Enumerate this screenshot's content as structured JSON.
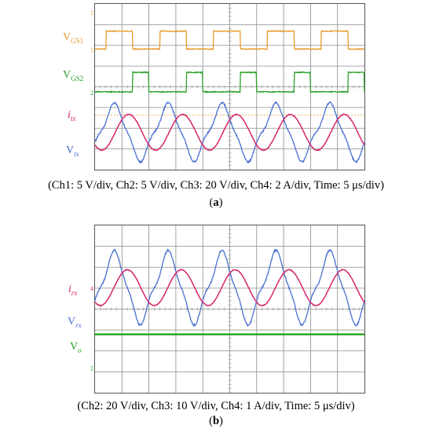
{
  "colors": {
    "vgs1": "#e89a2a",
    "vgs2": "#2ca02c",
    "current": "#d6246b",
    "voltage": "#4a6fd1",
    "grid": "#8c8c8c",
    "output": "#1fa31f"
  },
  "panel_a": {
    "labels": {
      "vgs1_main": "V",
      "vgs1_sub": "GS1",
      "vgs2_main": "V",
      "vgs2_sub": "GS2",
      "itx_main": "i",
      "itx_sub": "tx",
      "vtx_main": "V",
      "vtx_sub": "tx"
    },
    "caption": "(Ch1: 5 V/div, Ch2: 5 V/div, Ch3: 20 V/div, Ch4: 2 A/div, Time: 5 μs/div)",
    "sub_open": "(",
    "sub_letter": "a",
    "sub_close": ")"
  },
  "panel_b": {
    "labels": {
      "irx_main": "i",
      "irx_sub": "rx",
      "vrx_main": "V",
      "vrx_sub": "rx",
      "vo_main": "V",
      "vo_sub": "o"
    },
    "caption": "(Ch2: 20 V/div, Ch3: 10 V/div, Ch4: 1 A/div, Time: 5 μs/div)",
    "sub_open": "(",
    "sub_letter": "b",
    "sub_close": ")"
  },
  "chart_data": [
    {
      "type": "line",
      "x_unit": "div",
      "xlim": [
        0,
        10
      ],
      "grid": true,
      "grid_divisions": {
        "x": 10,
        "y": 8
      },
      "switching_period_div": 2.0,
      "series": [
        {
          "name": "VGS1",
          "shape": "square",
          "period": 2.0,
          "high_phase": [
            0.4,
            1.4
          ]
        },
        {
          "name": "VGS2",
          "shape": "square",
          "period": 2.0,
          "high_phase": [
            1.4,
            2.4
          ]
        },
        {
          "name": "itx",
          "shape": "sine",
          "period": 2.0,
          "amplitude_div": 0.8,
          "peak_x": [
            1.25,
            3.25,
            5.25,
            7.25,
            9.25
          ]
        },
        {
          "name": "Vtx",
          "shape": "distorted-triangle",
          "period": 2.0,
          "amplitude_div": 1.4,
          "peak_x": [
            0.7,
            2.7,
            4.7,
            6.7,
            8.7
          ]
        }
      ]
    },
    {
      "type": "line",
      "x_unit": "div",
      "xlim": [
        0,
        10
      ],
      "grid": true,
      "grid_divisions": {
        "x": 10,
        "y": 8
      },
      "series": [
        {
          "name": "irx",
          "shape": "sine",
          "period": 2.0,
          "amplitude_div": 0.8,
          "peak_x": [
            1.2,
            3.2,
            5.2,
            7.2,
            9.2
          ]
        },
        {
          "name": "Vrx",
          "shape": "distorted-triangle",
          "period": 2.0,
          "amplitude_div": 1.6,
          "peak_x": [
            0.7,
            2.7,
            4.7,
            6.7,
            8.7
          ]
        },
        {
          "name": "Vo",
          "shape": "dc",
          "level_div": 0.0
        }
      ]
    }
  ]
}
